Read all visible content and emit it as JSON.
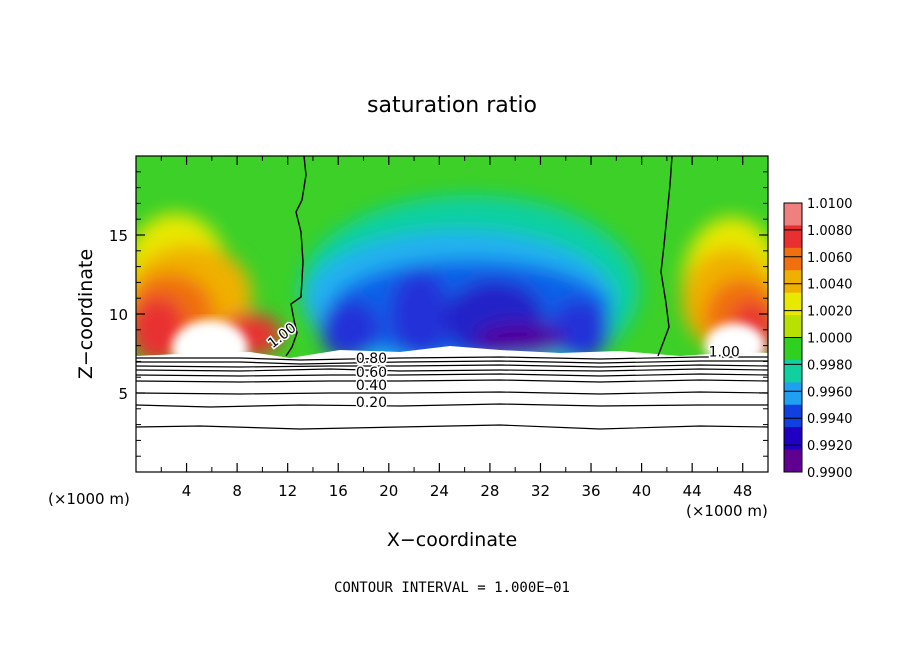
{
  "chart_data": {
    "type": "heatmap",
    "title": "saturation ratio",
    "xlabel": "X−coordinate",
    "ylabel": "Z−coordinate",
    "x_unit_left": "(×1000 m)",
    "x_unit_right": "(×1000 m)",
    "xlim": [
      0,
      50
    ],
    "ylim": [
      0,
      20
    ],
    "xticks": [
      4,
      8,
      12,
      16,
      20,
      24,
      28,
      32,
      36,
      40,
      44,
      48
    ],
    "yticks": [
      5,
      10,
      15
    ],
    "footer": "CONTOUR INTERVAL = 1.000E−01",
    "colorbar": {
      "levels": [
        "1.0100",
        "1.0080",
        "1.0060",
        "1.0040",
        "1.0020",
        "1.0000",
        "0.9980",
        "0.9960",
        "0.9940",
        "0.9920",
        "0.9900"
      ],
      "colors": [
        "#f08080",
        "#e83030",
        "#f07010",
        "#f0b000",
        "#e8e800",
        "#b8e000",
        "#30d020",
        "#10d0a0",
        "#20a0f0",
        "#1040e0",
        "#2000c0",
        "#600090"
      ]
    },
    "contour_labels": [
      {
        "text": "1.00",
        "x": 10.8,
        "y": 7.8,
        "rotate": -38
      },
      {
        "text": "0.80",
        "x": 17.4,
        "y": 6.9
      },
      {
        "text": "0.60",
        "x": 17.4,
        "y": 6.0
      },
      {
        "text": "0.40",
        "x": 17.4,
        "y": 5.2
      },
      {
        "text": "0.20",
        "x": 17.4,
        "y": 4.1
      },
      {
        "text": "1.00",
        "x": 45.3,
        "y": 7.3
      }
    ]
  }
}
